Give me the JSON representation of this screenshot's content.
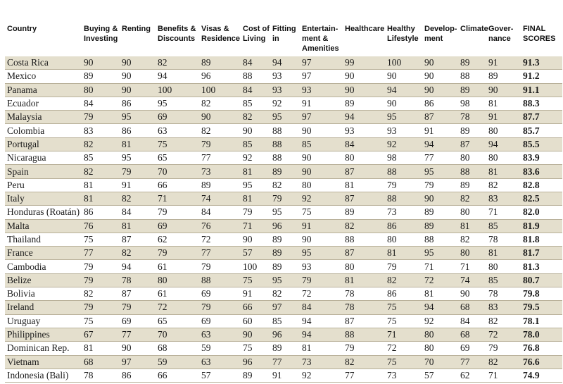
{
  "headers": {
    "country": "Country",
    "buying": [
      "Buying &",
      "Investing"
    ],
    "renting": "Renting",
    "benefits": [
      "Benefits &",
      "Discounts"
    ],
    "visas": [
      "Visas &",
      "Residence"
    ],
    "cost": [
      "Cost of",
      "Living"
    ],
    "fitting": [
      "Fitting",
      "in"
    ],
    "entertainment": [
      "Entertain-",
      "ment &",
      "Amenities"
    ],
    "healthcare": "Healthcare",
    "healthy": [
      "Healthy",
      "Lifestyle"
    ],
    "development": [
      "Develop-",
      "ment"
    ],
    "climate": "Climate",
    "governance": [
      "Gover-",
      "nance"
    ],
    "final": [
      "FINAL",
      "SCORES"
    ]
  },
  "rows": [
    [
      "Costa Rica",
      "90",
      "90",
      "82",
      "89",
      "84",
      "94",
      "97",
      "99",
      "100",
      "90",
      "89",
      "91",
      "91.3"
    ],
    [
      "Mexico",
      "89",
      "90",
      "94",
      "96",
      "88",
      "93",
      "97",
      "90",
      "90",
      "90",
      "88",
      "89",
      "91.2"
    ],
    [
      "Panama",
      "80",
      "90",
      "100",
      "100",
      "84",
      "93",
      "93",
      "90",
      "94",
      "90",
      "89",
      "90",
      "91.1"
    ],
    [
      "Ecuador",
      "84",
      "86",
      "95",
      "82",
      "85",
      "92",
      "91",
      "89",
      "90",
      "86",
      "98",
      "81",
      "88.3"
    ],
    [
      "Malaysia",
      "79",
      "95",
      "69",
      "90",
      "82",
      "95",
      "97",
      "94",
      "95",
      "87",
      "78",
      "91",
      "87.7"
    ],
    [
      "Colombia",
      "83",
      "86",
      "63",
      "82",
      "90",
      "88",
      "90",
      "93",
      "93",
      "91",
      "89",
      "80",
      "85.7"
    ],
    [
      "Portugal",
      "82",
      "81",
      "75",
      "79",
      "85",
      "88",
      "85",
      "84",
      "92",
      "94",
      "87",
      "94",
      "85.5"
    ],
    [
      "Nicaragua",
      "85",
      "95",
      "65",
      "77",
      "92",
      "88",
      "90",
      "80",
      "98",
      "77",
      "80",
      "80",
      "83.9"
    ],
    [
      "Spain",
      "82",
      "79",
      "70",
      "73",
      "81",
      "89",
      "90",
      "87",
      "88",
      "95",
      "88",
      "81",
      "83.6"
    ],
    [
      "Peru",
      "81",
      "91",
      "66",
      "89",
      "95",
      "82",
      "80",
      "81",
      "79",
      "79",
      "89",
      "82",
      "82.8"
    ],
    [
      "Italy",
      "81",
      "82",
      "71",
      "74",
      "81",
      "79",
      "92",
      "87",
      "88",
      "90",
      "82",
      "83",
      "82.5"
    ],
    [
      "Honduras (Roatán)",
      "86",
      "84",
      "79",
      "84",
      "79",
      "95",
      "75",
      "89",
      "73",
      "89",
      "80",
      "71",
      "82.0"
    ],
    [
      "Malta",
      "76",
      "81",
      "69",
      "76",
      "71",
      "96",
      "91",
      "82",
      "86",
      "89",
      "81",
      "85",
      "81.9"
    ],
    [
      "Thailand",
      "75",
      "87",
      "62",
      "72",
      "90",
      "89",
      "90",
      "88",
      "80",
      "88",
      "82",
      "78",
      "81.8"
    ],
    [
      "France",
      "77",
      "82",
      "79",
      "77",
      "57",
      "89",
      "95",
      "87",
      "81",
      "95",
      "80",
      "81",
      "81.7"
    ],
    [
      "Cambodia",
      "79",
      "94",
      "61",
      "79",
      "100",
      "89",
      "93",
      "80",
      "79",
      "71",
      "71",
      "80",
      "81.3"
    ],
    [
      "Belize",
      "79",
      "78",
      "80",
      "88",
      "75",
      "95",
      "79",
      "81",
      "82",
      "72",
      "74",
      "85",
      "80.7"
    ],
    [
      "Bolivia",
      "82",
      "87",
      "61",
      "69",
      "91",
      "82",
      "72",
      "78",
      "86",
      "81",
      "90",
      "78",
      "79.8"
    ],
    [
      "Ireland",
      "79",
      "79",
      "72",
      "79",
      "66",
      "97",
      "84",
      "78",
      "75",
      "94",
      "68",
      "83",
      "79.5"
    ],
    [
      "Uruguay",
      "75",
      "69",
      "65",
      "69",
      "60",
      "85",
      "94",
      "87",
      "75",
      "92",
      "84",
      "82",
      "78.1"
    ],
    [
      "Philippines",
      "67",
      "77",
      "70",
      "63",
      "90",
      "96",
      "94",
      "88",
      "71",
      "80",
      "68",
      "72",
      "78.0"
    ],
    [
      "Dominican Rep.",
      "81",
      "90",
      "68",
      "59",
      "75",
      "89",
      "81",
      "79",
      "72",
      "80",
      "69",
      "79",
      "76.8"
    ],
    [
      "Vietnam",
      "68",
      "97",
      "59",
      "63",
      "96",
      "77",
      "73",
      "82",
      "75",
      "70",
      "77",
      "82",
      "76.6"
    ],
    [
      "Indonesia (Bali)",
      "78",
      "86",
      "66",
      "57",
      "89",
      "91",
      "92",
      "77",
      "73",
      "57",
      "62",
      "71",
      "74.9"
    ]
  ]
}
